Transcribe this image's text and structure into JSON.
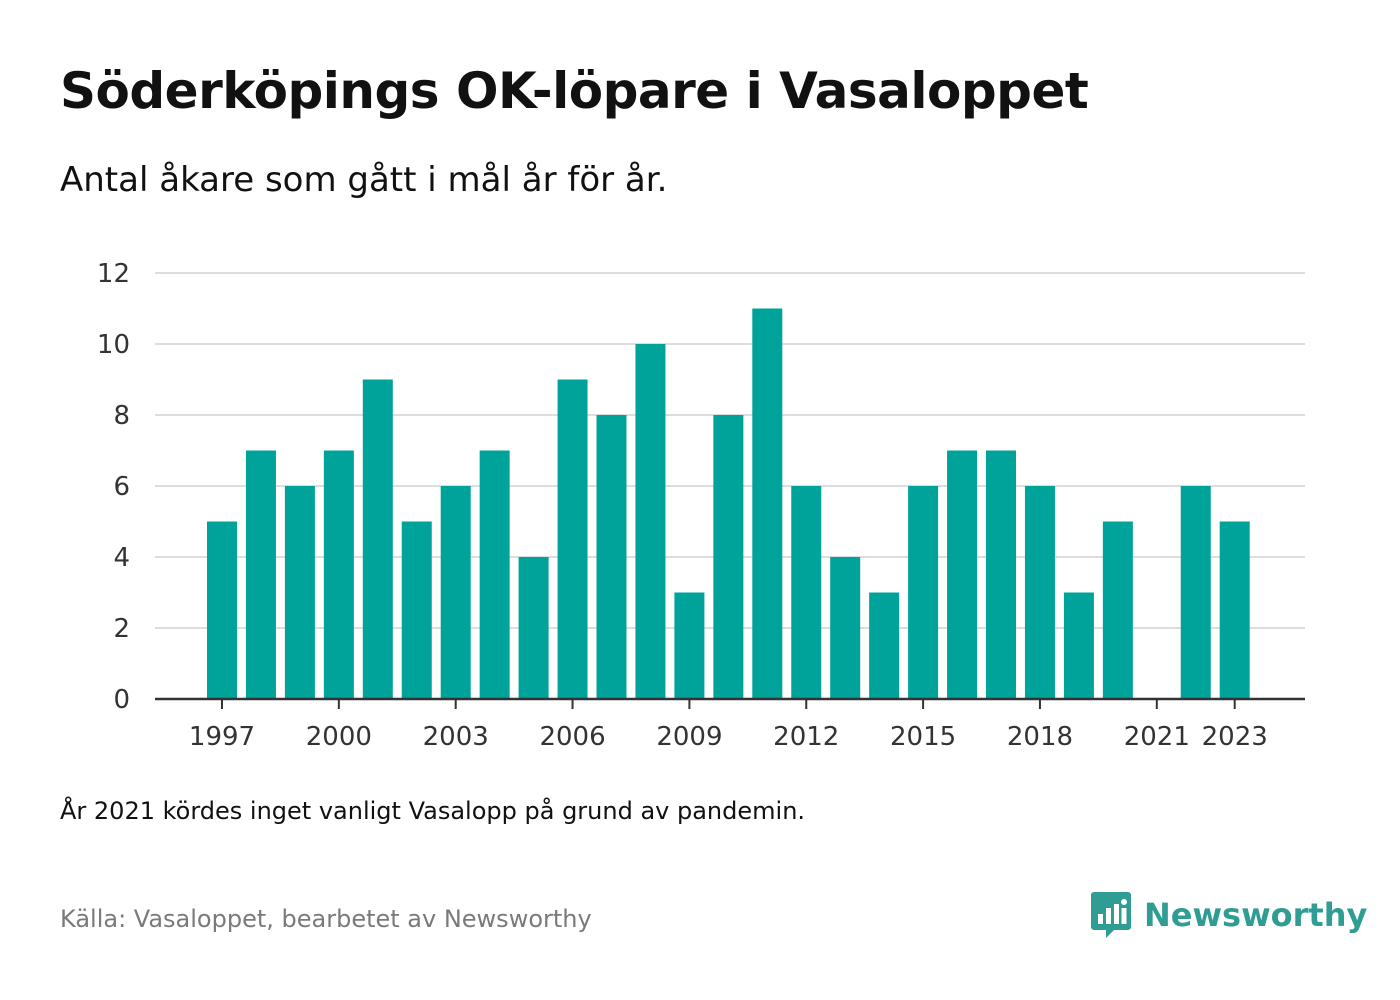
{
  "title": "Söderköpings OK-löpare i Vasaloppet",
  "subtitle": "Antal åkare som gått i mål år för år.",
  "note": "År 2021 kördes inget vanligt Vasalopp på grund av pandemin.",
  "source": "Källa: Vasaloppet, bearbetet av Newsworthy",
  "brand": {
    "name": "Newsworthy",
    "icon": "newsworthy-logo-icon",
    "color": "#2f9d93"
  },
  "colors": {
    "bar": "#00a39a",
    "grid": "#dddddd",
    "axis": "#333333"
  },
  "chart_data": {
    "type": "bar",
    "x": [
      1997,
      1998,
      1999,
      2000,
      2001,
      2002,
      2003,
      2004,
      2005,
      2006,
      2007,
      2008,
      2009,
      2010,
      2011,
      2012,
      2013,
      2014,
      2015,
      2016,
      2017,
      2018,
      2019,
      2020,
      2021,
      2022,
      2023
    ],
    "values": [
      5,
      7,
      6,
      7,
      9,
      5,
      6,
      7,
      4,
      9,
      8,
      10,
      3,
      8,
      11,
      6,
      4,
      3,
      6,
      7,
      7,
      6,
      3,
      5,
      null,
      6,
      5
    ],
    "x_tick_labels": [
      "1997",
      "2000",
      "2003",
      "2006",
      "2009",
      "2012",
      "2015",
      "2018",
      "2021",
      "2023"
    ],
    "y_tick_labels": [
      "0",
      "2",
      "4",
      "6",
      "8",
      "10",
      "12"
    ],
    "ylim": [
      0,
      12
    ],
    "grid": true,
    "legend": "none"
  }
}
